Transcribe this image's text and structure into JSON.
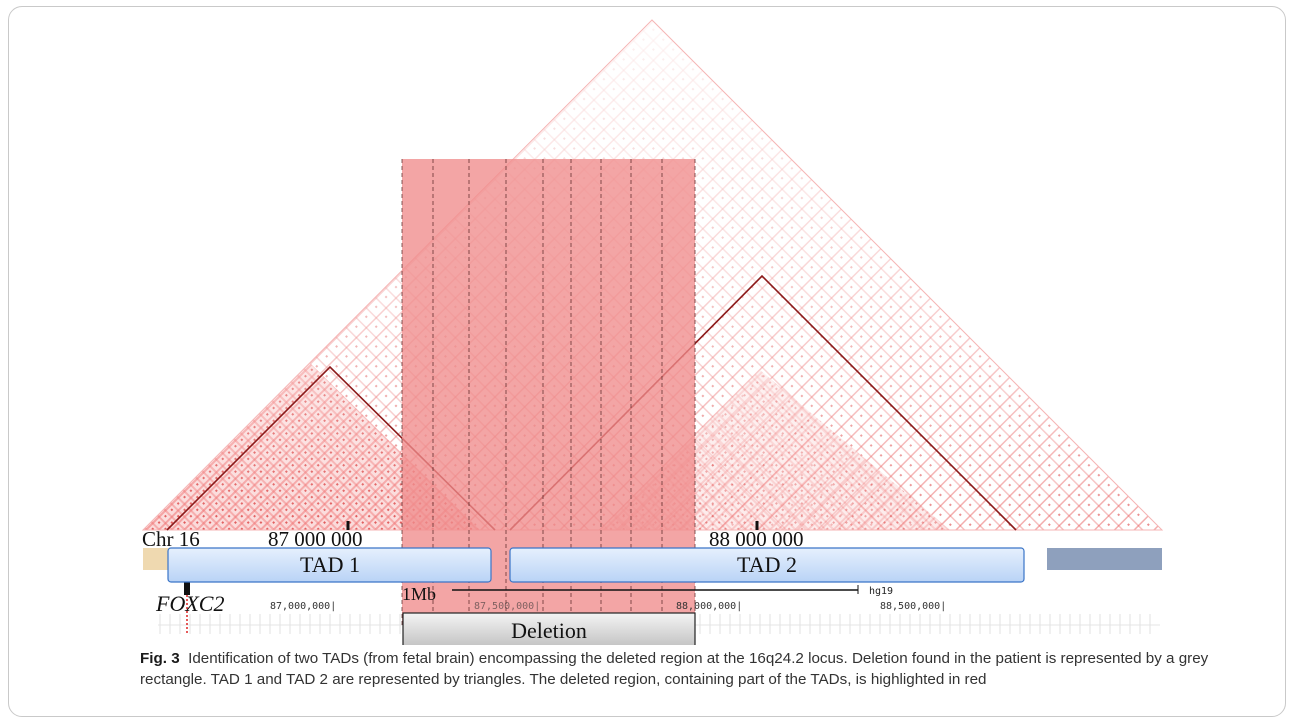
{
  "figure": {
    "chrom_label": "Chr 16",
    "coord_labels": [
      "87 000 000",
      "88 000 000"
    ],
    "tads": [
      {
        "label": "TAD 1"
      },
      {
        "label": "TAD 2"
      }
    ],
    "scale_label": "1Mb",
    "assembly_label": "hg19",
    "browser_ticks": [
      "87,000,000|",
      "87,500,000|",
      "88,000,000|",
      "88,500,000|"
    ],
    "gene_label": "FOXC2",
    "deletion_label": "Deletion",
    "colors": {
      "hic": "#e0161e",
      "deletion_highlight": "#f08c8c",
      "tad_box": "#cfe3fb",
      "tad_border": "#3a74c7",
      "tad_triangle": "#8b1a1a",
      "deletion_box": "#d8d8d8"
    }
  },
  "caption": {
    "label": "Fig. 3",
    "text": "Identification of two TADs (from fetal brain) encompassing the deleted region at the 16q24.2 locus. Deletion found in the patient is represented by a grey rectangle. TAD 1 and TAD 2 are represented by triangles. The deleted region, containing part of the TADs, is highlighted in red"
  }
}
